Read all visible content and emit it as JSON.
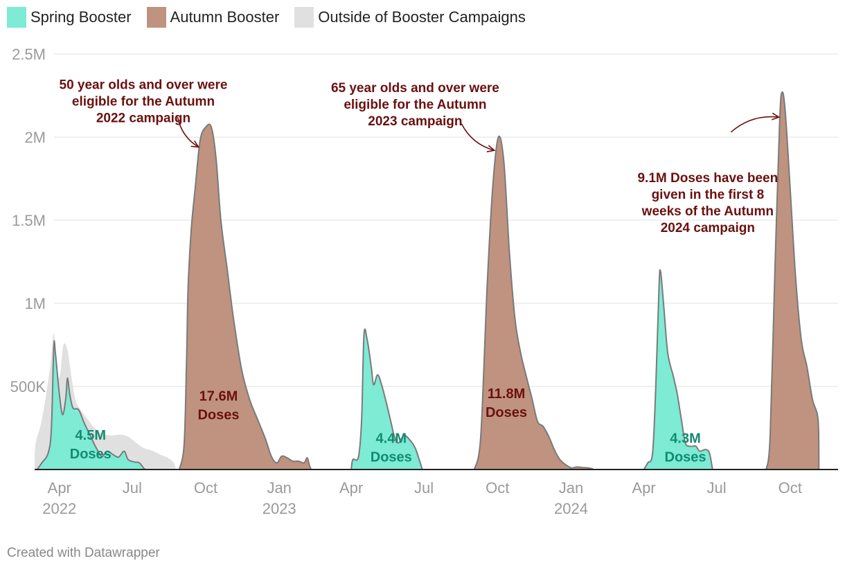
{
  "colors": {
    "spring": "#7eebd4",
    "autumn": "#bf937f",
    "outside": "#e0e0e0",
    "outline": "#7a7a7a",
    "annotation": "#6b1010",
    "spring_label": "#138a72",
    "grid": "#e2e2e2",
    "tick": "#9a9a9a"
  },
  "legend": {
    "spring": "Spring Booster",
    "autumn": "Autumn Booster",
    "outside": "Outside of Booster Campaigns"
  },
  "footer": "Created with Datawrapper",
  "chart_data": {
    "type": "area",
    "y_unit": "weekly doses",
    "ylim": [
      0,
      2500000
    ],
    "x_range": [
      "2022-03-01",
      "2024-11-30"
    ],
    "grid": true,
    "legend_position": "top-left",
    "y_ticks": [
      {
        "value": 500000,
        "label": "500K"
      },
      {
        "value": 1000000,
        "label": "1M"
      },
      {
        "value": 1500000,
        "label": "1.5M"
      },
      {
        "value": 2000000,
        "label": "2M"
      },
      {
        "value": 2500000,
        "label": "2.5M"
      }
    ],
    "x_ticks": [
      {
        "date": "2022-04-01",
        "label": "Apr",
        "year": "2022"
      },
      {
        "date": "2022-07-01",
        "label": "Jul"
      },
      {
        "date": "2022-10-01",
        "label": "Oct"
      },
      {
        "date": "2023-01-01",
        "label": "Jan",
        "year": "2023"
      },
      {
        "date": "2023-04-01",
        "label": "Apr"
      },
      {
        "date": "2023-07-01",
        "label": "Jul"
      },
      {
        "date": "2023-10-01",
        "label": "Oct"
      },
      {
        "date": "2024-01-01",
        "label": "Jan",
        "year": "2024"
      },
      {
        "date": "2024-04-01",
        "label": "Apr"
      },
      {
        "date": "2024-07-01",
        "label": "Jul"
      },
      {
        "date": "2024-10-01",
        "label": "Oct"
      }
    ],
    "series": [
      {
        "name": "Outside of Booster Campaigns",
        "color_key": "outside",
        "points": [
          [
            "2022-03-01",
            0
          ],
          [
            "2022-03-02",
            150000
          ],
          [
            "2022-03-10",
            300000
          ],
          [
            "2022-03-20",
            600000
          ],
          [
            "2022-03-25",
            820000
          ],
          [
            "2022-03-29",
            560000
          ],
          [
            "2022-04-02",
            580000
          ],
          [
            "2022-04-06",
            750000
          ],
          [
            "2022-04-11",
            720000
          ],
          [
            "2022-04-16",
            560000
          ],
          [
            "2022-04-21",
            420000
          ],
          [
            "2022-04-26",
            370000
          ],
          [
            "2022-05-05",
            310000
          ],
          [
            "2022-05-15",
            250000
          ],
          [
            "2022-05-25",
            215000
          ],
          [
            "2022-06-05",
            205000
          ],
          [
            "2022-06-15",
            210000
          ],
          [
            "2022-06-25",
            200000
          ],
          [
            "2022-07-05",
            165000
          ],
          [
            "2022-07-15",
            130000
          ],
          [
            "2022-07-25",
            115000
          ],
          [
            "2022-08-05",
            90000
          ],
          [
            "2022-08-15",
            70000
          ],
          [
            "2022-08-22",
            40000
          ],
          [
            "2022-08-25",
            0
          ]
        ]
      },
      {
        "name": "Spring Booster",
        "color_key": "spring",
        "points": [
          [
            "2022-03-04",
            0
          ],
          [
            "2022-03-10",
            40000
          ],
          [
            "2022-03-18",
            100000
          ],
          [
            "2022-03-22",
            250000
          ],
          [
            "2022-03-25",
            740000
          ],
          [
            "2022-03-27",
            700000
          ],
          [
            "2022-04-01",
            450000
          ],
          [
            "2022-04-05",
            330000
          ],
          [
            "2022-04-09",
            430000
          ],
          [
            "2022-04-11",
            550000
          ],
          [
            "2022-04-14",
            450000
          ],
          [
            "2022-04-18",
            370000
          ],
          [
            "2022-04-25",
            360000
          ],
          [
            "2022-05-02",
            280000
          ],
          [
            "2022-05-10",
            200000
          ],
          [
            "2022-05-17",
            130000
          ],
          [
            "2022-05-24",
            80000
          ],
          [
            "2022-05-31",
            110000
          ],
          [
            "2022-06-07",
            90000
          ],
          [
            "2022-06-14",
            75000
          ],
          [
            "2022-06-21",
            110000
          ],
          [
            "2022-06-26",
            60000
          ],
          [
            "2022-07-04",
            45000
          ],
          [
            "2022-07-10",
            40000
          ],
          [
            "2022-07-16",
            5000
          ],
          [
            "2022-07-18",
            0
          ],
          [
            "2023-04-01",
            0
          ],
          [
            "2023-04-03",
            60000
          ],
          [
            "2023-04-10",
            75000
          ],
          [
            "2023-04-14",
            300000
          ],
          [
            "2023-04-17",
            810000
          ],
          [
            "2023-04-21",
            780000
          ],
          [
            "2023-04-26",
            620000
          ],
          [
            "2023-04-29",
            510000
          ],
          [
            "2023-05-04",
            570000
          ],
          [
            "2023-05-09",
            510000
          ],
          [
            "2023-05-15",
            400000
          ],
          [
            "2023-05-20",
            300000
          ],
          [
            "2023-05-25",
            200000
          ],
          [
            "2023-05-30",
            160000
          ],
          [
            "2023-06-06",
            205000
          ],
          [
            "2023-06-13",
            180000
          ],
          [
            "2023-06-20",
            130000
          ],
          [
            "2023-06-25",
            60000
          ],
          [
            "2023-06-29",
            0
          ],
          [
            "2024-04-01",
            0
          ],
          [
            "2024-04-06",
            40000
          ],
          [
            "2024-04-12",
            100000
          ],
          [
            "2024-04-16",
            500000
          ],
          [
            "2024-04-20",
            1100000
          ],
          [
            "2024-04-22",
            1190000
          ],
          [
            "2024-04-26",
            980000
          ],
          [
            "2024-05-01",
            700000
          ],
          [
            "2024-05-08",
            560000
          ],
          [
            "2024-05-13",
            450000
          ],
          [
            "2024-05-18",
            300000
          ],
          [
            "2024-05-23",
            160000
          ],
          [
            "2024-05-29",
            140000
          ],
          [
            "2024-06-05",
            140000
          ],
          [
            "2024-06-10",
            110000
          ],
          [
            "2024-06-17",
            120000
          ],
          [
            "2024-06-22",
            100000
          ],
          [
            "2024-06-26",
            0
          ]
        ]
      },
      {
        "name": "Autumn Booster",
        "color_key": "autumn",
        "points": [
          [
            "2022-08-29",
            0
          ],
          [
            "2022-09-04",
            150000
          ],
          [
            "2022-09-07",
            650000
          ],
          [
            "2022-09-09",
            1100000
          ],
          [
            "2022-09-13",
            1450000
          ],
          [
            "2022-09-18",
            1700000
          ],
          [
            "2022-09-24",
            1980000
          ],
          [
            "2022-10-01",
            2060000
          ],
          [
            "2022-10-08",
            2060000
          ],
          [
            "2022-10-14",
            1870000
          ],
          [
            "2022-10-20",
            1500000
          ],
          [
            "2022-10-28",
            1200000
          ],
          [
            "2022-11-05",
            900000
          ],
          [
            "2022-11-15",
            600000
          ],
          [
            "2022-11-25",
            420000
          ],
          [
            "2022-12-05",
            300000
          ],
          [
            "2022-12-15",
            180000
          ],
          [
            "2022-12-22",
            80000
          ],
          [
            "2022-12-29",
            40000
          ],
          [
            "2023-01-04",
            80000
          ],
          [
            "2023-01-11",
            70000
          ],
          [
            "2023-01-18",
            50000
          ],
          [
            "2023-01-25",
            50000
          ],
          [
            "2023-02-01",
            40000
          ],
          [
            "2023-02-05",
            70000
          ],
          [
            "2023-02-08",
            20000
          ],
          [
            "2023-02-10",
            0
          ],
          [
            "2023-09-02",
            0
          ],
          [
            "2023-09-10",
            200000
          ],
          [
            "2023-09-18",
            1100000
          ],
          [
            "2023-09-25",
            1700000
          ],
          [
            "2023-10-02",
            2000000
          ],
          [
            "2023-10-09",
            1850000
          ],
          [
            "2023-10-16",
            1300000
          ],
          [
            "2023-10-23",
            900000
          ],
          [
            "2023-10-30",
            700000
          ],
          [
            "2023-11-06",
            560000
          ],
          [
            "2023-11-13",
            430000
          ],
          [
            "2023-11-20",
            290000
          ],
          [
            "2023-11-27",
            260000
          ],
          [
            "2023-12-04",
            200000
          ],
          [
            "2023-12-11",
            120000
          ],
          [
            "2023-12-18",
            60000
          ],
          [
            "2023-12-25",
            30000
          ],
          [
            "2024-01-01",
            10000
          ],
          [
            "2024-01-08",
            15000
          ],
          [
            "2024-01-15",
            12000
          ],
          [
            "2024-01-22",
            10000
          ],
          [
            "2024-01-27",
            5000
          ],
          [
            "2024-01-29",
            0
          ],
          [
            "2024-09-01",
            0
          ],
          [
            "2024-09-06",
            200000
          ],
          [
            "2024-09-12",
            1200000
          ],
          [
            "2024-09-18",
            2100000
          ],
          [
            "2024-09-21",
            2270000
          ],
          [
            "2024-09-25",
            2150000
          ],
          [
            "2024-10-01",
            1700000
          ],
          [
            "2024-10-08",
            1150000
          ],
          [
            "2024-10-15",
            780000
          ],
          [
            "2024-10-22",
            620000
          ],
          [
            "2024-10-29",
            420000
          ],
          [
            "2024-11-05",
            300000
          ],
          [
            "2024-11-06",
            0
          ]
        ]
      }
    ],
    "annotations": [
      {
        "kind": "total",
        "lines": [
          "4.5M",
          "Doses"
        ],
        "anchor_date": "2022-05-10",
        "anchor_value": 180000,
        "color_key": "spring_label"
      },
      {
        "kind": "total",
        "lines": [
          "17.6M",
          "Doses"
        ],
        "anchor_date": "2022-10-17",
        "anchor_value": 415000,
        "color_key": "annotation"
      },
      {
        "kind": "total",
        "lines": [
          "4.4M",
          "Doses"
        ],
        "anchor_date": "2023-05-21",
        "anchor_value": 160000,
        "color_key": "spring_label"
      },
      {
        "kind": "total",
        "lines": [
          "11.8M",
          "Doses"
        ],
        "anchor_date": "2023-10-12",
        "anchor_value": 430000,
        "color_key": "annotation"
      },
      {
        "kind": "total",
        "lines": [
          "4.3M",
          "Doses"
        ],
        "anchor_date": "2024-05-23",
        "anchor_value": 160000,
        "color_key": "spring_label"
      },
      {
        "kind": "note",
        "lines": [
          "50 year olds and over were",
          "eligible for the Autumn",
          "2022 campaign"
        ],
        "anchor_date": "2022-07-15",
        "anchor_value": 2290000,
        "color_key": "annotation",
        "arrow_from": [
          "2022-08-27",
          2120000
        ],
        "arrow_to": [
          "2022-09-22",
          1940000
        ]
      },
      {
        "kind": "note",
        "lines": [
          "65 year olds and over were",
          "eligible for the Autumn",
          "2023 campaign"
        ],
        "anchor_date": "2023-06-20",
        "anchor_value": 2270000,
        "color_key": "annotation",
        "arrow_from": [
          "2023-08-17",
          2080000
        ],
        "arrow_to": [
          "2023-09-27",
          1920000
        ]
      },
      {
        "kind": "note",
        "lines": [
          "9.1M Doses have been",
          "given in the first 8",
          "weeks of the Autumn",
          "2024 campaign"
        ],
        "anchor_date": "2024-06-20",
        "anchor_value": 1730000,
        "color_key": "annotation",
        "arrow_from": [
          "2024-07-19",
          2030000
        ],
        "arrow_to": [
          "2024-09-17",
          2120000
        ]
      }
    ]
  }
}
